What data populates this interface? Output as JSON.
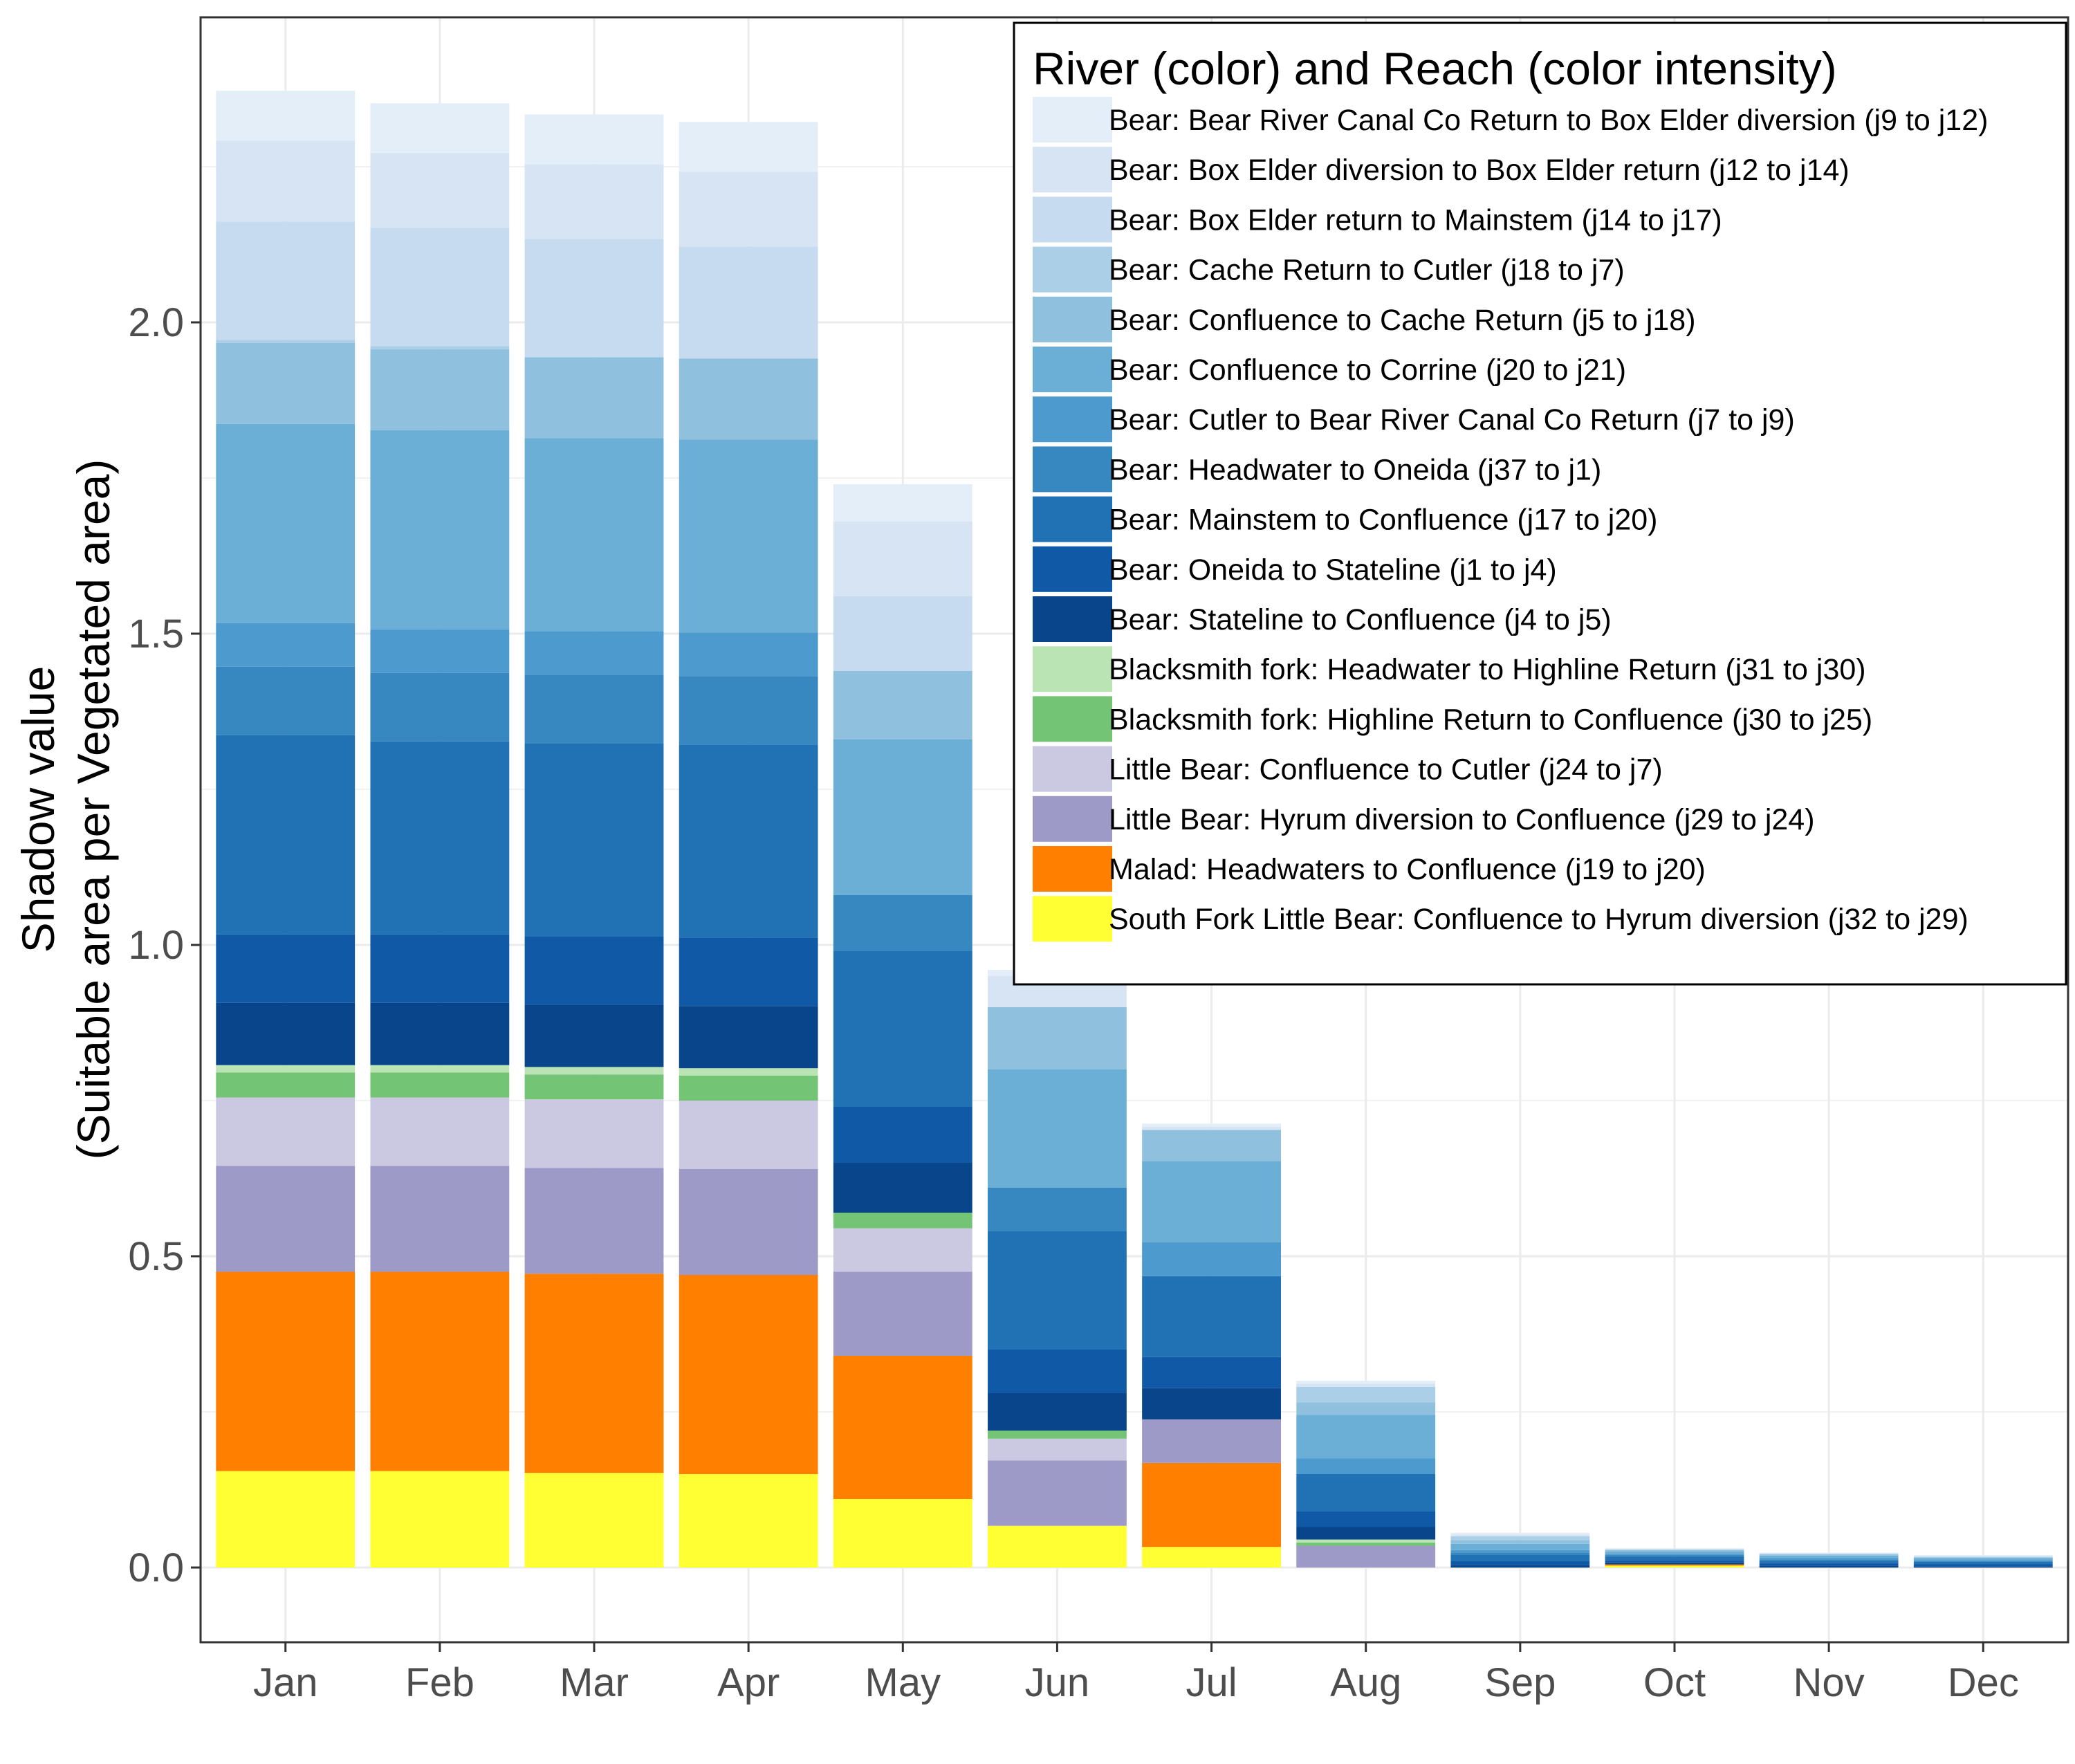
{
  "chart_data": {
    "type": "bar",
    "stacked": true,
    "ylabel_line1": "Shadow value",
    "ylabel_line2": "(Suitable area per Vegetated area)",
    "xlabel": "",
    "ylim": [
      -0.12,
      2.49
    ],
    "y_ticks": [
      "0.0",
      "0.5",
      "1.0",
      "1.5",
      "2.0"
    ],
    "y_tick_values": [
      0,
      0.5,
      1.0,
      1.5,
      2.0
    ],
    "grid": true,
    "legend_title": "River (color) and Reach (color intensity)",
    "legend_position": "top-right",
    "categories": [
      "Jan",
      "Feb",
      "Mar",
      "Apr",
      "May",
      "Jun",
      "Jul",
      "Aug",
      "Sep",
      "Oct",
      "Nov",
      "Dec"
    ],
    "stack_order": "South Fork first at bottom; Bear: Bear River Canal Co Return last at top",
    "series": [
      {
        "name": "Bear: Bear River Canal Co Return to Box Elder diversion (j9 to j12)",
        "color": "#e3eef8",
        "values": [
          0.08,
          0.08,
          0.08,
          0.08,
          0.06,
          0.01,
          0.005,
          0.005,
          0.003,
          0.001,
          0.001,
          0.001
        ]
      },
      {
        "name": "Bear: Box Elder diversion to Box Elder return (j12 to j14)",
        "color": "#d6e4f3",
        "values": [
          0.13,
          0.12,
          0.12,
          0.12,
          0.12,
          0.05,
          0.005,
          0.005,
          0.003,
          0.001,
          0.001,
          0.001
        ]
      },
      {
        "name": "Bear: Box Elder return to Mainstem (j14 to j17)",
        "color": "#c6dbef",
        "values": [
          0.19,
          0.19,
          0.19,
          0.18,
          0.12,
          0.0,
          0.0,
          0.0,
          0.0,
          0.0,
          0.0,
          0.001
        ]
      },
      {
        "name": "Bear: Cache Return to Cutler (j18 to j7)",
        "color": "#abcfe6",
        "values": [
          0.005,
          0.005,
          0.0,
          0.0,
          0.0,
          0.0,
          0.0,
          0.025,
          0.006,
          0.001,
          0.001,
          0.001
        ]
      },
      {
        "name": "Bear: Confluence to Cache Return (j5 to j18)",
        "color": "#8fc0de",
        "values": [
          0.13,
          0.13,
          0.13,
          0.13,
          0.11,
          0.1,
          0.05,
          0.02,
          0.006,
          0.002,
          0.002,
          0.001
        ]
      },
      {
        "name": "Bear: Confluence to Corrine (j20 to j21)",
        "color": "#6baed6",
        "values": [
          0.32,
          0.32,
          0.31,
          0.31,
          0.25,
          0.19,
          0.13,
          0.07,
          0.01,
          0.004,
          0.004,
          0.003
        ]
      },
      {
        "name": "Bear: Cutler to Bear River Canal Co Return (j7 to j9)",
        "color": "#4d9ace",
        "values": [
          0.07,
          0.07,
          0.07,
          0.07,
          0.0,
          0.0,
          0.055,
          0.025,
          0.004,
          0.002,
          0.002,
          0.001
        ]
      },
      {
        "name": "Bear: Headwater to Oneida (j37 to j1)",
        "color": "#3787c1",
        "values": [
          0.11,
          0.11,
          0.11,
          0.11,
          0.09,
          0.07,
          0.0,
          0.0,
          0.004,
          0.002,
          0.002,
          0.002
        ]
      },
      {
        "name": "Bear: Mainstem to Confluence (j17 to j20)",
        "color": "#2171b5",
        "values": [
          0.32,
          0.31,
          0.31,
          0.31,
          0.25,
          0.19,
          0.13,
          0.06,
          0.01,
          0.006,
          0.004,
          0.004
        ]
      },
      {
        "name": "Bear: Oneida to Stateline (j1 to j4)",
        "color": "#1059a7",
        "values": [
          0.11,
          0.11,
          0.11,
          0.11,
          0.09,
          0.07,
          0.05,
          0.025,
          0.006,
          0.004,
          0.004,
          0.003
        ]
      },
      {
        "name": "Bear: Stateline to Confluence (j4 to j5)",
        "color": "#08458a",
        "values": [
          0.1,
          0.1,
          0.1,
          0.1,
          0.08,
          0.06,
          0.05,
          0.02,
          0.004,
          0.003,
          0.003,
          0.002
        ]
      },
      {
        "name": "Blacksmith fork: Headwater to Highline Return (j31 to j30)",
        "color": "#bae4b3",
        "values": [
          0.012,
          0.012,
          0.012,
          0.012,
          0.0,
          0.0,
          0.0,
          0.005,
          0.0,
          0.0,
          0.0,
          0.0
        ]
      },
      {
        "name": "Blacksmith fork: Highline Return to Confluence (j30 to j25)",
        "color": "#74c476",
        "values": [
          0.04,
          0.04,
          0.04,
          0.04,
          0.025,
          0.013,
          0.0,
          0.005,
          0.0,
          0.0,
          0.0,
          0.0
        ]
      },
      {
        "name": "Little Bear: Confluence to Cutler (j24 to j7)",
        "color": "#cbc9e2",
        "values": [
          0.11,
          0.11,
          0.11,
          0.11,
          0.07,
          0.035,
          0.0,
          0.0,
          0.0,
          0.0,
          0.0,
          0.0
        ]
      },
      {
        "name": "Little Bear: Hyrum diversion to Confluence (j29 to j24)",
        "color": "#9e9ac8",
        "values": [
          0.17,
          0.17,
          0.17,
          0.17,
          0.135,
          0.105,
          0.07,
          0.035,
          0.0,
          0.0,
          0.0,
          0.0
        ]
      },
      {
        "name": "Malad: Headwaters to Confluence (j19 to j20)",
        "color": "#ff7f00",
        "values": [
          0.32,
          0.32,
          0.32,
          0.32,
          0.23,
          0.0,
          0.135,
          0.0,
          0.0,
          0.002,
          0.0,
          0.0
        ]
      },
      {
        "name": "South Fork Little Bear: Confluence to Hyrum diversion (j32 to j29)",
        "color": "#ffff33",
        "values": [
          0.155,
          0.155,
          0.152,
          0.15,
          0.11,
          0.067,
          0.033,
          0.0,
          0.0,
          0.003,
          0.0,
          0.0
        ]
      }
    ]
  }
}
